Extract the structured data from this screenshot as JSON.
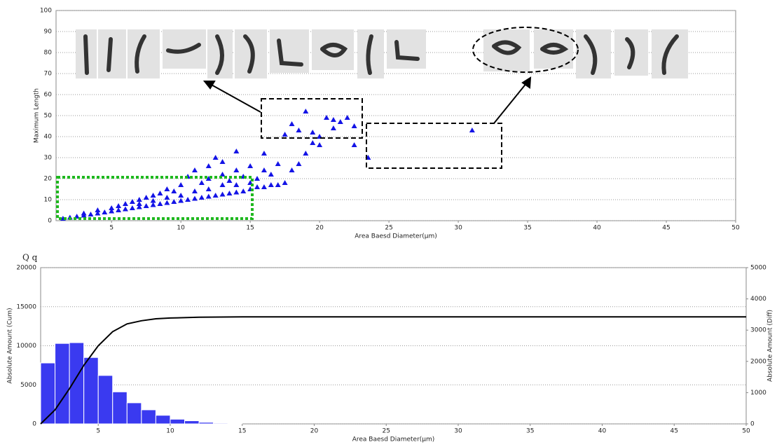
{
  "chart_data": [
    {
      "type": "scatter",
      "ylabel": "Maximum Length",
      "xlabel": "Area Baesd Diameter(μm)",
      "color": "#1414e6",
      "xlim": [
        1,
        50
      ],
      "ylim": [
        0,
        100
      ],
      "xticks": [
        5,
        10,
        15,
        20,
        25,
        30,
        35,
        40,
        45,
        50
      ],
      "yticks": [
        0,
        10,
        20,
        30,
        40,
        50,
        60,
        70,
        80,
        90,
        100
      ],
      "grid": true,
      "x": [
        1.5,
        2,
        2.5,
        3,
        3,
        3.5,
        4,
        4,
        4.5,
        5,
        5,
        5.5,
        5.5,
        6,
        6,
        6.5,
        6.5,
        7,
        7,
        7,
        7.5,
        7.5,
        8,
        8,
        8,
        8.5,
        8.5,
        9,
        9,
        9,
        9.5,
        9.5,
        10,
        10,
        10,
        10.5,
        10.5,
        11,
        11,
        11,
        11.5,
        11.5,
        12,
        12,
        12,
        12,
        12.5,
        12.5,
        13,
        13,
        13,
        13,
        13.5,
        13.5,
        14,
        14,
        14,
        14,
        14.5,
        14.5,
        15,
        15,
        15,
        15.5,
        15.5,
        16,
        16,
        16,
        16.5,
        16.5,
        17,
        17,
        17.5,
        17.5,
        18,
        18,
        18.5,
        18.5,
        19,
        19,
        19.5,
        19.5,
        20,
        20,
        20.5,
        21,
        21,
        21.5,
        22,
        22.5,
        22.5,
        23.5,
        31
      ],
      "y": [
        1,
        1.5,
        2,
        2.5,
        3.5,
        3,
        3.5,
        5,
        4,
        4.5,
        6,
        5,
        7,
        5.5,
        8,
        6,
        9,
        6.5,
        8,
        10,
        7,
        11,
        7.5,
        9.5,
        12,
        8,
        13,
        8.5,
        11,
        15,
        9,
        14,
        9.5,
        12,
        17,
        10,
        21,
        10.5,
        14,
        24,
        11,
        18,
        11.5,
        15,
        20,
        26,
        12,
        30,
        12.5,
        17,
        22,
        28,
        13,
        19,
        13.5,
        17,
        24,
        33,
        14,
        21,
        15,
        18,
        26,
        16,
        20,
        16,
        24,
        32,
        17,
        22,
        17,
        27,
        18,
        41,
        24,
        46,
        27,
        43,
        52,
        32,
        37,
        42,
        40,
        36,
        49,
        44,
        48,
        47,
        49,
        36,
        45,
        30,
        43
      ]
    },
    {
      "type": "histogram",
      "title": "Q q",
      "xlabel": "Area Baesd Diameter(μm)",
      "ylabel": "Absolute Amount (Cum)",
      "y2label": "Absolute Amount (Diff)",
      "xlim": [
        1,
        50
      ],
      "ylim": [
        0,
        20000
      ],
      "y2lim": [
        0,
        5000
      ],
      "xticks": [
        5,
        10,
        15,
        20,
        25,
        30,
        35,
        40,
        45,
        50
      ],
      "yticks": [
        0,
        5000,
        10000,
        15000,
        20000
      ],
      "y2ticks": [
        0,
        1000,
        2000,
        3000,
        4000,
        5000
      ],
      "grid": true,
      "color": "#3a3af0",
      "axis": "y2",
      "bins": [
        1,
        2,
        3,
        4,
        5,
        6,
        7,
        8,
        9,
        10,
        11,
        12,
        13,
        14,
        15
      ],
      "values": [
        1950,
        2575,
        2600,
        2125,
        1550,
        1025,
        675,
        450,
        275,
        150,
        100,
        50,
        25,
        12
      ],
      "line": {
        "color": "#000000",
        "x": [
          1,
          2,
          3,
          4,
          5,
          6,
          7,
          8,
          9,
          10,
          12,
          15,
          20,
          30,
          50
        ],
        "values": [
          0,
          1800,
          4500,
          7500,
          10000,
          11800,
          12800,
          13200,
          13450,
          13550,
          13650,
          13700,
          13700,
          13700,
          13700
        ]
      }
    }
  ]
}
